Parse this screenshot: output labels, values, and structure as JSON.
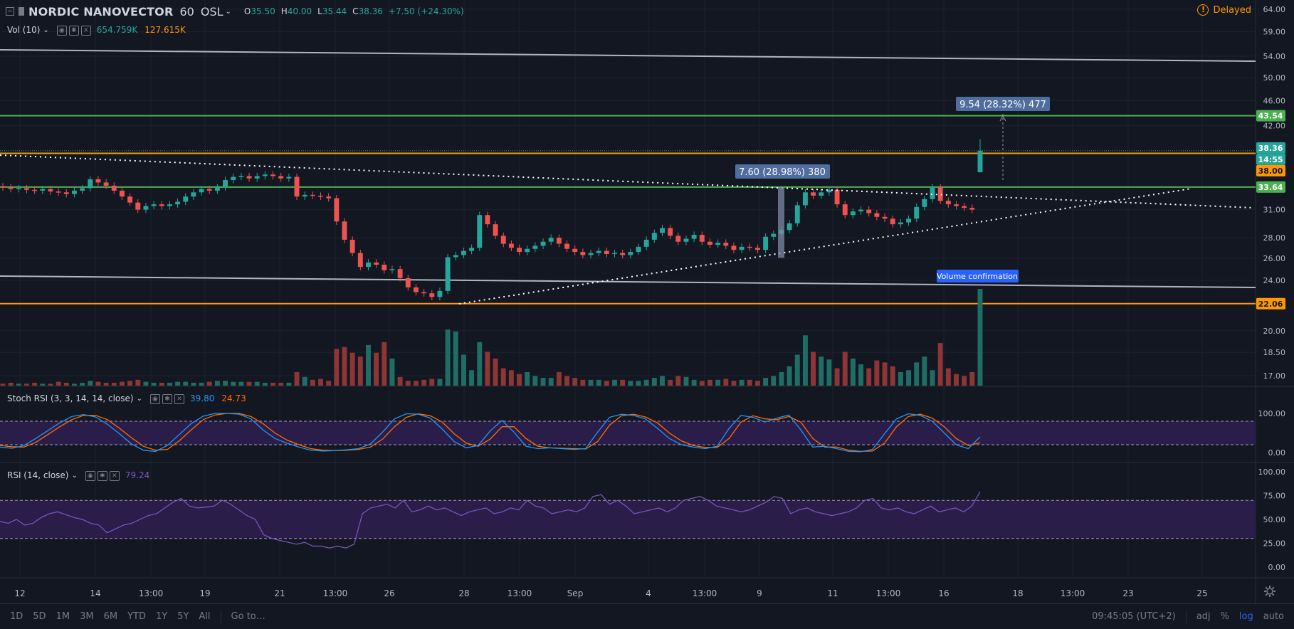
{
  "header": {
    "symbol": "NORDIC NANOVECTOR",
    "interval": "60",
    "exchange": "OSL",
    "o_label": "O",
    "o_value": "35.50",
    "h_label": "H",
    "h_value": "40.00",
    "l_label": "L",
    "l_value": "35.44",
    "c_label": "C",
    "c_value": "38.36",
    "change": "+7.50 (+24.30%)",
    "status": "Delayed"
  },
  "indicators": {
    "vol": {
      "label": "Vol (10)",
      "v1": "654.759K",
      "v2": "127.615K"
    },
    "stoch": {
      "label": "Stoch RSI (3, 3, 14, 14, close)",
      "k": "39.80",
      "d": "24.73"
    },
    "rsi": {
      "label": "RSI (14, close)",
      "value": "79.24"
    }
  },
  "annotations": {
    "measure_upper": "9.54 (28.32%) 477",
    "measure_lower": "7.60 (28.98%) 380",
    "volume_note": "Volume confirmation"
  },
  "bottom_bar": {
    "ranges": [
      "1D",
      "5D",
      "1M",
      "3M",
      "6M",
      "YTD",
      "1Y",
      "5Y",
      "All"
    ],
    "goto": "Go to…",
    "clock": "09:45:05 (UTC+2)",
    "adj": "adj",
    "pct": "%",
    "log": "log",
    "auto": "auto"
  },
  "colors": {
    "background": "#131722",
    "up": "#26a69a",
    "down": "#ef5350",
    "support_orange": "#ff9800",
    "level_green": "#4caf50",
    "rsi_purple": "#7e57c2",
    "stoch_k": "#2196f3",
    "stoch_d": "#ff6d00",
    "accent_blue": "#2962ff"
  },
  "chart_data": {
    "type": "candlestick",
    "price_scale": "log",
    "y_ticks": [
      "64.00",
      "59.00",
      "54.00",
      "50.00",
      "46.00",
      "42.00",
      "31.00",
      "28.00",
      "26.00",
      "24.00",
      "20.00",
      "18.50",
      "17.00"
    ],
    "x_ticks": [
      "12",
      "14",
      "13:00",
      "19",
      "21",
      "13:00",
      "26",
      "28",
      "13:00",
      "Sep",
      "4",
      "13:00",
      "9",
      "11",
      "13:00",
      "16",
      "18",
      "13:00",
      "23",
      "25"
    ],
    "price_badges": [
      {
        "label": "43.54",
        "color": "#4caf50"
      },
      {
        "label": "38.36",
        "color": "#26a69a"
      },
      {
        "label": "14:55",
        "color": "#26a69a"
      },
      {
        "label": "38.00",
        "color": "#ff9800"
      },
      {
        "label": "33.64",
        "color": "#4caf50"
      },
      {
        "label": "22.06",
        "color": "#ff9800"
      }
    ],
    "horizontal_levels": [
      {
        "price": 43.54,
        "color": "#4caf50"
      },
      {
        "price": 38.0,
        "color": "#ff9800"
      },
      {
        "price": 33.64,
        "color": "#4caf50"
      },
      {
        "price": 22.06,
        "color": "#ff9800"
      }
    ],
    "candles_close": [
      33.6,
      33.4,
      33.5,
      33.3,
      33.2,
      33.4,
      33.1,
      33.0,
      32.8,
      33.2,
      33.5,
      34.6,
      34.2,
      33.8,
      33.2,
      32.5,
      31.8,
      31.0,
      31.4,
      31.6,
      31.4,
      31.6,
      31.9,
      32.5,
      33.0,
      33.4,
      33.2,
      33.6,
      34.5,
      34.9,
      35.0,
      34.7,
      35.0,
      35.2,
      35.0,
      34.7,
      34.9,
      32.5,
      32.7,
      32.6,
      32.5,
      32.3,
      29.7,
      27.8,
      26.5,
      25.2,
      25.6,
      25.4,
      24.9,
      25.0,
      24.2,
      23.4,
      23.0,
      22.9,
      22.6,
      23.1,
      26.1,
      26.3,
      26.7,
      27.0,
      30.4,
      29.4,
      28.2,
      27.4,
      27.0,
      26.6,
      26.9,
      27.2,
      27.6,
      28.0,
      27.4,
      26.9,
      26.6,
      26.3,
      26.5,
      26.7,
      26.4,
      26.5,
      26.3,
      26.6,
      27.1,
      27.8,
      28.5,
      29.0,
      28.2,
      27.6,
      27.9,
      28.3,
      27.6,
      27.3,
      27.5,
      27.2,
      26.8,
      27.1,
      27.0,
      26.8,
      28.1,
      28.4,
      28.8,
      29.5,
      31.5,
      33.0,
      32.6,
      33.0,
      33.3,
      31.6,
      30.4,
      30.8,
      31.0,
      30.6,
      30.2,
      30.0,
      29.4,
      29.6,
      30.0,
      31.3,
      32.2,
      33.6,
      32.0,
      31.6,
      31.4,
      31.2,
      31.0,
      38.36
    ],
    "volume_relative": [
      2,
      3,
      2,
      2,
      3,
      2,
      2,
      4,
      3,
      2,
      3,
      5,
      4,
      3,
      3,
      4,
      5,
      6,
      4,
      3,
      3,
      3,
      4,
      4,
      3,
      3,
      4,
      5,
      5,
      4,
      4,
      4,
      4,
      3,
      3,
      3,
      3,
      14,
      9,
      6,
      7,
      5,
      38,
      40,
      34,
      30,
      42,
      34,
      45,
      28,
      9,
      5,
      5,
      6,
      7,
      7,
      58,
      56,
      32,
      16,
      45,
      35,
      28,
      18,
      16,
      12,
      14,
      10,
      8,
      8,
      14,
      10,
      8,
      6,
      6,
      6,
      5,
      6,
      6,
      5,
      5,
      6,
      8,
      10,
      6,
      10,
      9,
      6,
      5,
      6,
      6,
      7,
      5,
      6,
      6,
      5,
      8,
      10,
      14,
      20,
      32,
      52,
      35,
      30,
      27,
      18,
      35,
      28,
      22,
      18,
      26,
      24,
      20,
      14,
      16,
      24,
      30,
      16,
      44,
      18,
      12,
      10,
      14,
      100
    ],
    "stoch_rsi_k": [
      0.14,
      0.11,
      0.18,
      0.36,
      0.56,
      0.76,
      0.92,
      0.97,
      0.91,
      0.72,
      0.48,
      0.22,
      0.06,
      0.03,
      0.18,
      0.46,
      0.74,
      0.93,
      1.0,
      1.0,
      0.98,
      0.86,
      0.58,
      0.36,
      0.24,
      0.14,
      0.06,
      0.04,
      0.05,
      0.07,
      0.1,
      0.22,
      0.52,
      0.86,
      0.99,
      0.98,
      0.88,
      0.6,
      0.28,
      0.12,
      0.18,
      0.55,
      0.82,
      0.52,
      0.16,
      0.1,
      0.12,
      0.1,
      0.08,
      0.1,
      0.52,
      0.9,
      0.98,
      0.95,
      0.86,
      0.62,
      0.36,
      0.2,
      0.14,
      0.1,
      0.16,
      0.62,
      0.95,
      0.9,
      0.78,
      0.88,
      0.96,
      0.58,
      0.14,
      0.16,
      0.1,
      0.03,
      0.02,
      0.08,
      0.48,
      0.86,
      0.99,
      0.95,
      0.8,
      0.5,
      0.2,
      0.1,
      0.4
    ],
    "stoch_rsi_d": [
      0.18,
      0.15,
      0.14,
      0.26,
      0.46,
      0.66,
      0.84,
      0.95,
      0.95,
      0.84,
      0.62,
      0.38,
      0.16,
      0.06,
      0.08,
      0.3,
      0.58,
      0.84,
      0.96,
      1.0,
      1.0,
      0.92,
      0.74,
      0.5,
      0.32,
      0.2,
      0.1,
      0.06,
      0.05,
      0.06,
      0.08,
      0.14,
      0.34,
      0.66,
      0.9,
      0.99,
      0.94,
      0.78,
      0.48,
      0.24,
      0.16,
      0.34,
      0.66,
      0.66,
      0.36,
      0.16,
      0.12,
      0.11,
      0.1,
      0.09,
      0.28,
      0.7,
      0.94,
      0.98,
      0.91,
      0.76,
      0.5,
      0.3,
      0.18,
      0.13,
      0.13,
      0.36,
      0.78,
      0.94,
      0.86,
      0.84,
      0.92,
      0.78,
      0.36,
      0.14,
      0.14,
      0.06,
      0.03,
      0.04,
      0.24,
      0.66,
      0.92,
      0.98,
      0.88,
      0.66,
      0.36,
      0.18,
      0.25
    ],
    "rsi": [
      48,
      46,
      50,
      44,
      46,
      52,
      56,
      58,
      55,
      52,
      50,
      46,
      44,
      36,
      40,
      44,
      46,
      50,
      54,
      56,
      62,
      68,
      72,
      64,
      62,
      63,
      64,
      70,
      66,
      60,
      54,
      50,
      34,
      30,
      28,
      26,
      24,
      26,
      22,
      22,
      20,
      22,
      20,
      24,
      56,
      62,
      64,
      66,
      62,
      70,
      58,
      60,
      64,
      60,
      62,
      58,
      54,
      58,
      60,
      62,
      56,
      58,
      62,
      60,
      70,
      64,
      62,
      56,
      58,
      60,
      58,
      62,
      74,
      76,
      66,
      70,
      64,
      56,
      58,
      60,
      62,
      58,
      62,
      70,
      72,
      74,
      70,
      64,
      62,
      60,
      58,
      60,
      64,
      68,
      74,
      72,
      56,
      60,
      62,
      58,
      56,
      54,
      56,
      58,
      62,
      70,
      72,
      62,
      60,
      62,
      58,
      56,
      60,
      64,
      58,
      60,
      62,
      58,
      64,
      79
    ]
  }
}
